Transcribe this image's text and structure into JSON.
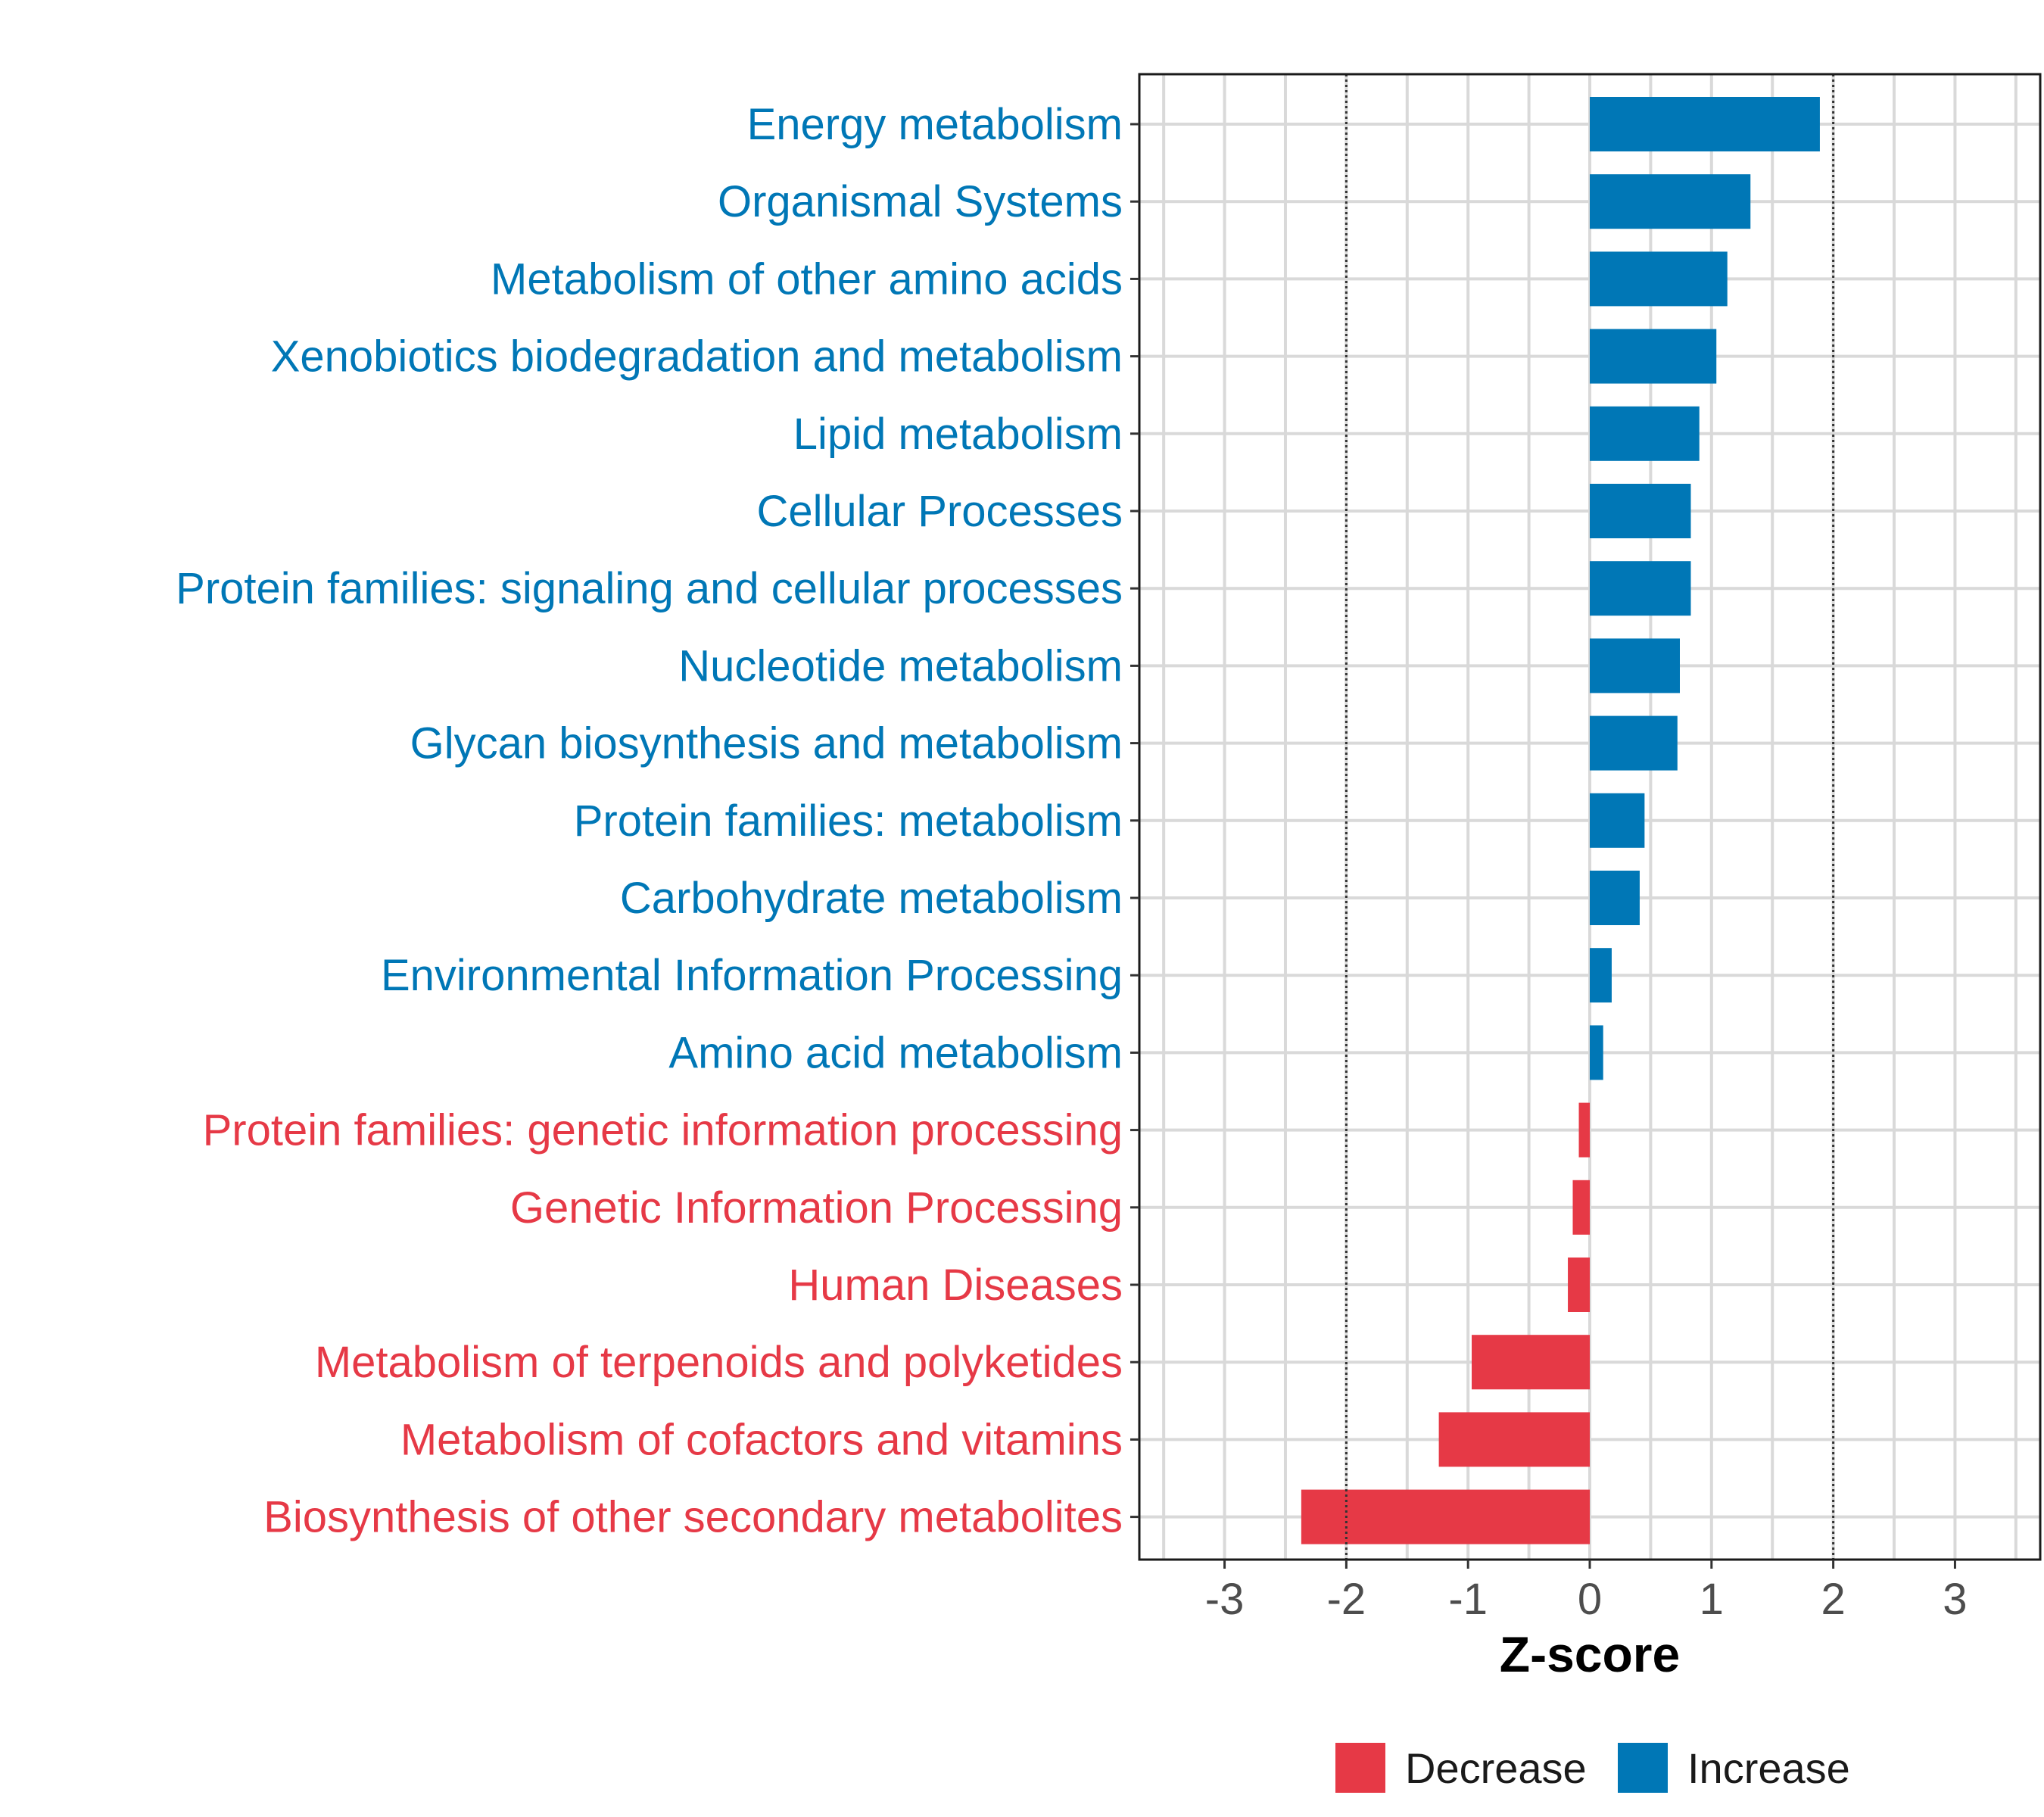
{
  "chart_data": {
    "type": "bar",
    "orientation": "horizontal",
    "title": "",
    "xlabel": "Z-score",
    "ylabel": "",
    "xlim": [
      -3.7,
      3.7
    ],
    "xticks": [
      -3,
      -2,
      -1,
      0,
      1,
      2,
      3
    ],
    "xtick_labels": [
      "-3",
      "-2",
      "-1",
      "0",
      "1",
      "2",
      "3"
    ],
    "reference_lines": [
      -2,
      2
    ],
    "grid": true,
    "legend_position": "bottom",
    "colors": {
      "Decrease": "#e63946",
      "Increase": "#0077b6"
    },
    "legend": [
      {
        "label": "Decrease",
        "color": "#e63946"
      },
      {
        "label": "Increase",
        "color": "#0077b6"
      }
    ],
    "categories": [
      "Energy metabolism",
      "Organismal Systems",
      "Metabolism of other amino acids",
      "Xenobiotics biodegradation and metabolism",
      "Lipid metabolism",
      "Cellular Processes",
      "Protein families: signaling and cellular processes",
      "Nucleotide metabolism",
      "Glycan biosynthesis and metabolism",
      "Protein families: metabolism",
      "Carbohydrate metabolism",
      "Environmental Information Processing",
      "Amino acid metabolism",
      "Protein families: genetic information processing",
      "Genetic Information Processing",
      "Human Diseases",
      "Metabolism of terpenoids and polyketides",
      "Metabolism of cofactors and vitamins",
      "Biosynthesis of other secondary metabolites"
    ],
    "values": [
      1.89,
      1.32,
      1.13,
      1.04,
      0.9,
      0.83,
      0.83,
      0.74,
      0.72,
      0.45,
      0.41,
      0.18,
      0.11,
      -0.09,
      -0.14,
      -0.18,
      -0.97,
      -1.24,
      -2.37
    ],
    "groups": [
      "Increase",
      "Increase",
      "Increase",
      "Increase",
      "Increase",
      "Increase",
      "Increase",
      "Increase",
      "Increase",
      "Increase",
      "Increase",
      "Increase",
      "Increase",
      "Decrease",
      "Decrease",
      "Decrease",
      "Decrease",
      "Decrease",
      "Decrease"
    ]
  }
}
